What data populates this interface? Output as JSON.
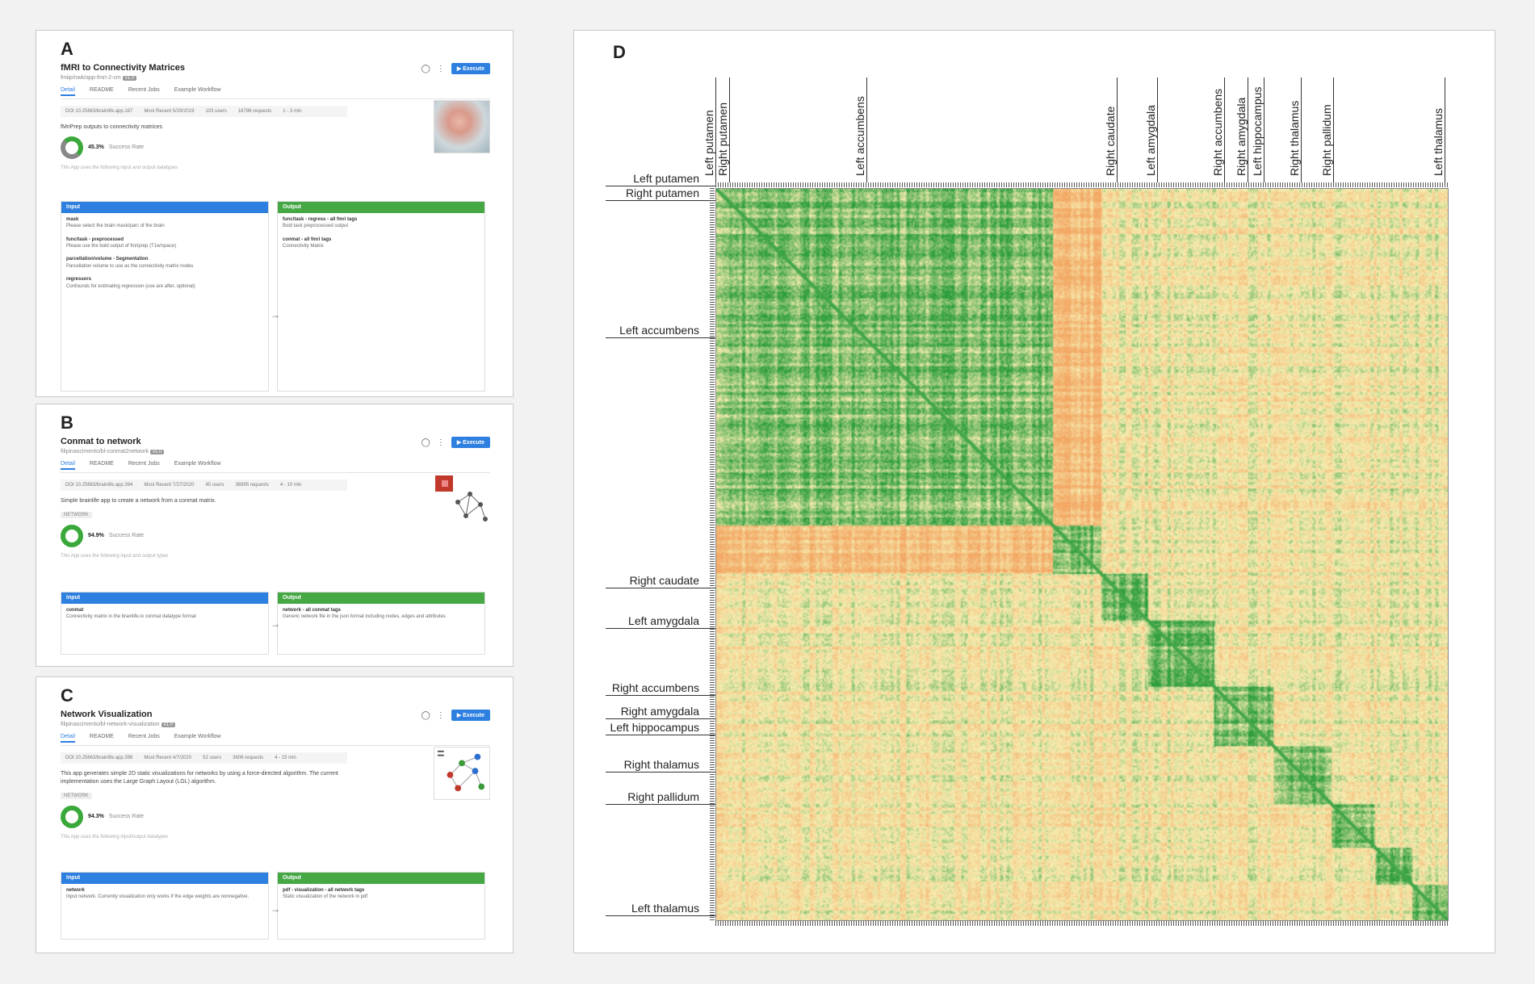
{
  "panel_a": {
    "label": "A",
    "title": "fMRI to Connectivity Matrices",
    "subtitle": "fmiip/nwk/app-fmri-2-cm",
    "version_badge": "v1.0",
    "execute_label": "Execute",
    "tabs": [
      "Detail",
      "README",
      "Recent Jobs",
      "Example Workflow"
    ],
    "stats": [
      "DOI 10.25663/brainlife.app.167",
      "Most Recent 5/29/2019",
      "103 users",
      "18786 requests",
      "1 - 3 min"
    ],
    "description": "fMriPrep outputs to connectivity matrices",
    "success_pct": "45.3%",
    "success_label": "Success Rate",
    "note": "This App uses the following input and output datatypes",
    "input_header": "Input",
    "output_header": "Output",
    "inputs": [
      {
        "name": "mask",
        "desc": "Please select the brain mask/parc of the brain"
      },
      {
        "name": "func/task - preprocessed",
        "desc": "Please use the bold output of fmriprep (T1w/space)"
      },
      {
        "name": "parcellation/volume - Segmentation",
        "desc": "Parcellation volume to use as the connectivity matrix nodes"
      },
      {
        "name": "regressors",
        "desc": "Confounds for estimating regression (use are after, optional)"
      }
    ],
    "outputs": [
      {
        "name": "func/task - regress - all fmri tags",
        "desc": "Bold task preprocessed output"
      },
      {
        "name": "conmat - all fmri tags",
        "desc": "Connectivity Matrix"
      }
    ]
  },
  "panel_b": {
    "label": "B",
    "title": "Conmat to network",
    "subtitle": "filipinascimento/bl-conmat2network",
    "version_badge": "v1.0",
    "execute_label": "Execute",
    "tabs": [
      "Detail",
      "README",
      "Recent Jobs",
      "Example Workflow"
    ],
    "stats": [
      "DOI 10.25663/brainlife.app.394",
      "Most Recent 7/27/2020",
      "45 users",
      "36995 requests",
      "4 - 10 min"
    ],
    "description": "Simple brainlife app to create a network from a conmat matrix.",
    "tag": "NETWORK",
    "success_pct": "94.9%",
    "success_label": "Success Rate",
    "note": "This App uses the following input and output types",
    "input_header": "Input",
    "output_header": "Output",
    "inputs": [
      {
        "name": "conmat",
        "desc": "Connectivity matrix in the brainlife.io conmat datatype format"
      }
    ],
    "outputs": [
      {
        "name": "network - all conmat tags",
        "desc": "Generic network file in the json format including nodes, edges and attributes"
      }
    ]
  },
  "panel_c": {
    "label": "C",
    "title": "Network Visualization",
    "subtitle": "filipinascimento/bl-network-visualization",
    "version_badge": "v1.0",
    "execute_label": "Execute",
    "tabs": [
      "Detail",
      "README",
      "Recent Jobs",
      "Example Workflow"
    ],
    "stats": [
      "DOI 10.25663/brainlife.app.396",
      "Most Recent 4/7/2020",
      "52 users",
      "3608 requests",
      "4 - 15 min"
    ],
    "description": "This app generates simple 2D static visualizations for networks by using a force-directed algorithm. The current implementation uses the Large Graph Layout (LGL) algorithm.",
    "tag": "NETWORK",
    "success_pct": "94.3%",
    "success_label": "Success Rate",
    "note": "This App uses the following input/output datatypes",
    "input_header": "Input",
    "output_header": "Output",
    "inputs": [
      {
        "name": "network",
        "desc": "Input network. Currently visualization only works if the edge weights are nonnegative."
      }
    ],
    "outputs": [
      {
        "name": "pdf - visualization - all network tags",
        "desc": "Static visualization of the network in pdf"
      }
    ]
  },
  "panel_d": {
    "label": "D",
    "row_labels": [
      "Left putamen",
      "Right putamen",
      "Left accumbens",
      "Right caudate",
      "Left amygdala",
      "Right accumbens",
      "Right amygdala",
      "Left hippocampus",
      "Right thalamus",
      "Right pallidum",
      "Left thalamus"
    ],
    "col_labels": [
      "Left putamen",
      "Right putamen",
      "Left accumbens",
      "Right caudate",
      "Left amygdala",
      "Right accumbens",
      "Right amygdala",
      "Left hippocampus",
      "Right thalamus",
      "Right pallidum",
      "Left thalamus"
    ],
    "colors": {
      "high": "#2e9e3e",
      "mid": "#f6edb0",
      "low": "#f3a865"
    }
  }
}
